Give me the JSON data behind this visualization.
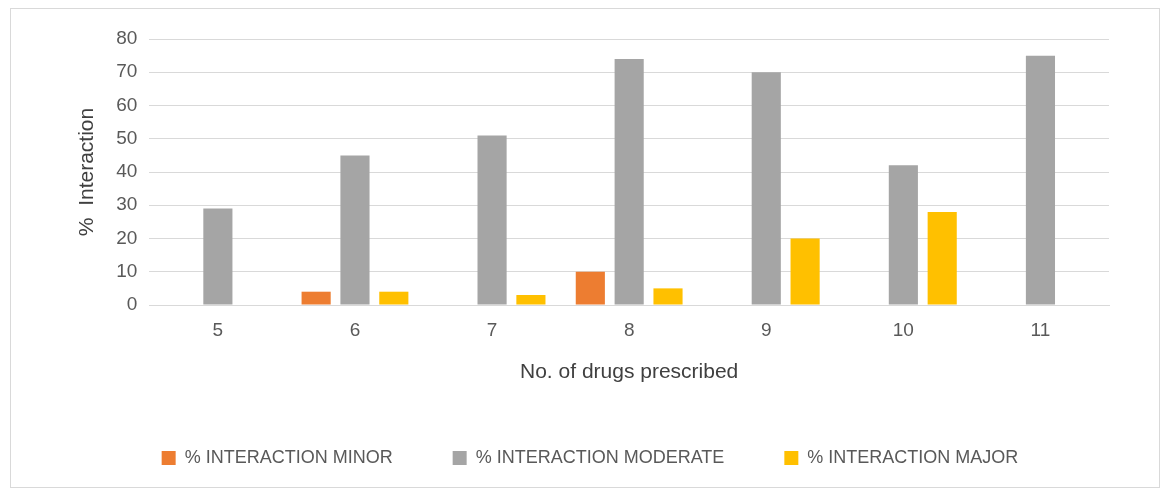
{
  "chart_data": {
    "type": "bar",
    "xlabel": "No. of drugs prescribed",
    "ylabel": "%  Interaction",
    "categories": [
      "5",
      "6",
      "7",
      "8",
      "9",
      "10",
      "11"
    ],
    "series": [
      {
        "name": "% INTERACTION MINOR",
        "color": "#ed7d31",
        "values": [
          0,
          4,
          0,
          10,
          0,
          0,
          0
        ]
      },
      {
        "name": "% INTERACTION MODERATE",
        "color": "#a5a5a5",
        "values": [
          29,
          45,
          51,
          74,
          70,
          42,
          75
        ]
      },
      {
        "name": "% INTERACTION MAJOR",
        "color": "#ffc000",
        "values": [
          0,
          4,
          3,
          5,
          20,
          28,
          0
        ]
      }
    ],
    "ylim": [
      0,
      80
    ],
    "yticks": [
      0,
      10,
      20,
      30,
      40,
      50,
      60,
      70,
      80
    ],
    "grid": "y",
    "legend": "bottom"
  }
}
